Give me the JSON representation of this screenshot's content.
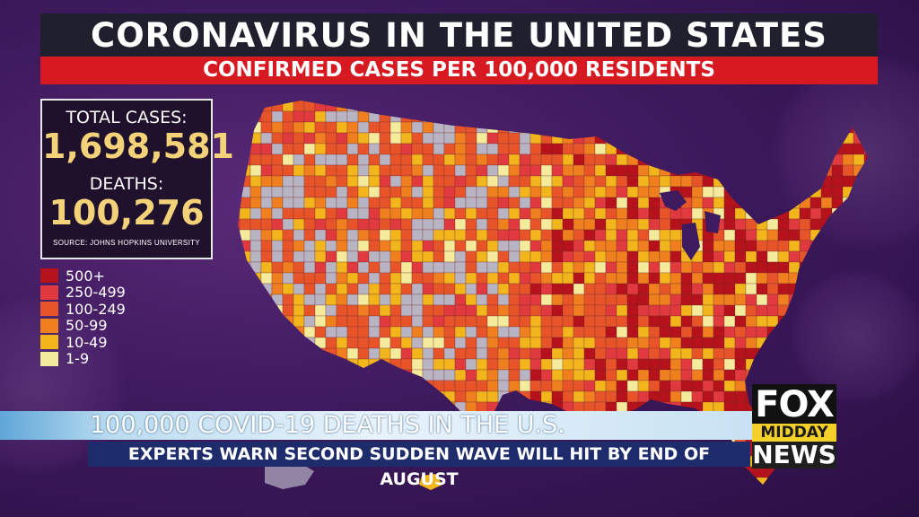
{
  "header": {
    "title": "CORONAVIRUS IN THE UNITED STATES",
    "subtitle": "CONFIRMED CASES PER 100,000 RESIDENTS"
  },
  "stats": {
    "total_cases_label": "TOTAL CASES:",
    "total_cases": "1,698,581",
    "deaths_label": "DEATHS:",
    "deaths": "100,276",
    "source": "SOURCE: JOHNS HOPKINS UNIVERSITY"
  },
  "legend": [
    {
      "label": "500+",
      "color": "#b5121b"
    },
    {
      "label": "250-499",
      "color": "#e0393e"
    },
    {
      "label": "100-249",
      "color": "#e8542a"
    },
    {
      "label": "50-99",
      "color": "#f07f1f"
    },
    {
      "label": "10-49",
      "color": "#f2b61c"
    },
    {
      "label": "1-9",
      "color": "#f4ec9c"
    }
  ],
  "no_data_color": "#b9b4c4",
  "ticker": {
    "headline": "100,000 COVID-19 DEATHS IN THE U.S.",
    "subline": "EXPERTS WARN SECOND SUDDEN WAVE WILL HIT BY END OF AUGUST"
  },
  "logo": {
    "top": "FOX",
    "middle": "MIDDAY",
    "bottom": "NEWS"
  }
}
